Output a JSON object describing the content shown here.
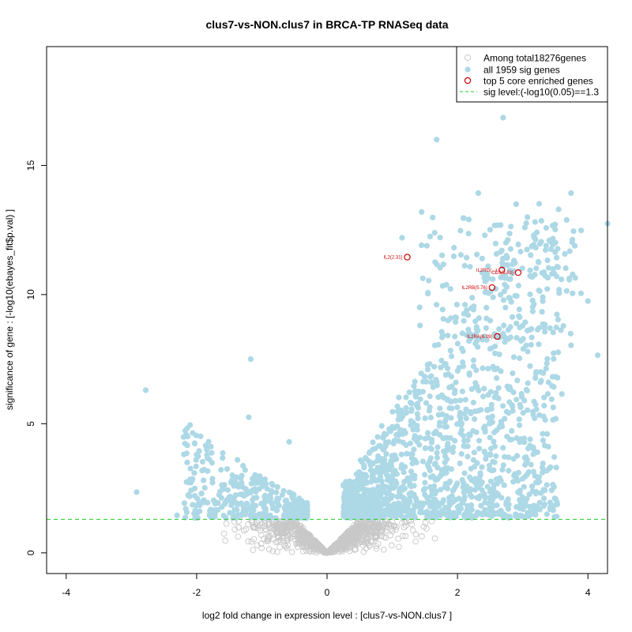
{
  "chart_data": {
    "type": "scatter",
    "title": "clus7-vs-NON.clus7 in BRCA-TP RNASeq data",
    "xlabel": "log2 fold change in expression level : [clus7-vs-NON.clus7 ]",
    "ylabel": "significance of gene : [-log10(ebayes_fit$p.val) ]",
    "xlim": [
      -4.3,
      4.3
    ],
    "ylim": [
      -0.8,
      19.6
    ],
    "x_ticks": [
      -4,
      -2,
      0,
      2,
      4
    ],
    "y_ticks": [
      0,
      5,
      10,
      15
    ],
    "colors": {
      "background_genes": "#c8c8c8",
      "sig_genes": "#add8e6",
      "core_genes": "#cc0000",
      "sig_line": "#22cc22"
    },
    "sig_threshold": 1.3,
    "legend": {
      "placement": "top-right",
      "entries": [
        {
          "label": "Among total18276genes",
          "marker": "open-circle-gray"
        },
        {
          "label": "all 1959 sig genes",
          "marker": "filled-circle-lightblue"
        },
        {
          "label": "top 5 core enriched genes",
          "marker": "open-circle-red"
        },
        {
          "label": "sig level:(-log10(0.05)==1.3",
          "marker": "dashed-line-green"
        }
      ]
    },
    "core_genes": [
      {
        "label": "IL2(2.31)",
        "x": 1.23,
        "y": 11.45
      },
      {
        "label": "IL2RG(...)",
        "x": 2.68,
        "y": 10.95
      },
      {
        "label": "CD3(5.63)",
        "x": 2.93,
        "y": 10.85
      },
      {
        "label": "IL2RB(5.76)",
        "x": 2.53,
        "y": 10.27
      },
      {
        "label": "IL2RA(6.09)",
        "x": 2.61,
        "y": 8.38
      }
    ],
    "sig_points_highlight": [
      [
        1.68,
        16.0
      ],
      [
        2.7,
        16.85
      ],
      [
        3.74,
        13.93
      ],
      [
        2.32,
        13.93
      ],
      [
        2.9,
        13.5
      ],
      [
        3.55,
        13.3
      ],
      [
        4.3,
        12.75
      ],
      [
        1.45,
        13.2
      ],
      [
        1.15,
        12.2
      ],
      [
        4.0,
        9.75
      ],
      [
        4.15,
        7.65
      ],
      [
        3.6,
        6.15
      ],
      [
        -2.78,
        6.3
      ],
      [
        -2.92,
        2.35
      ],
      [
        -1.17,
        7.5
      ],
      [
        -2.1,
        4.95
      ],
      [
        -1.2,
        5.25
      ],
      [
        -0.58,
        4.3
      ],
      [
        -2.0,
        3.8
      ],
      [
        -2.3,
        1.45
      ]
    ]
  }
}
